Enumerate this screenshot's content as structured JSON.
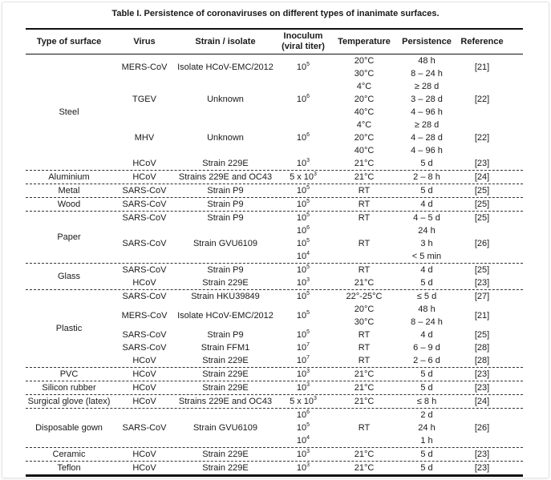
{
  "title": "Table I. Persistence of coronaviruses on different types of inanimate surfaces.",
  "headers": [
    "Type of surface",
    "Virus",
    "Strain / isolate",
    "Inoculum\n(viral titer)",
    "Temperature",
    "Persistence",
    "Reference"
  ],
  "surfaces": [
    {
      "name": "Steel",
      "entries": [
        {
          "virus": "MERS-CoV",
          "strain": "Isolate HCoV-EMC/2012",
          "inoculum": [
            {
              "base": "10",
              "exp": "5"
            }
          ],
          "temperature": [
            "20°C",
            "30°C"
          ],
          "persistence": [
            "48 h",
            "8 – 24 h"
          ],
          "reference": "[21]"
        },
        {
          "virus": "TGEV",
          "strain": "Unknown",
          "inoculum": [
            {
              "base": "10",
              "exp": "6"
            }
          ],
          "temperature": [
            "4°C",
            "20°C",
            "40°C"
          ],
          "persistence": [
            "≥ 28 d",
            "3 – 28 d",
            "4 – 96 h"
          ],
          "reference": "[22]"
        },
        {
          "virus": "MHV",
          "strain": "Unknown",
          "inoculum": [
            {
              "base": "10",
              "exp": "6"
            }
          ],
          "temperature": [
            "4°C",
            "20°C",
            "40°C"
          ],
          "persistence": [
            "≥ 28 d",
            "4 – 28 d",
            "4 – 96 h"
          ],
          "reference": "[22]"
        },
        {
          "virus": "HCoV",
          "strain": "Strain 229E",
          "inoculum": [
            {
              "base": "10",
              "exp": "3"
            }
          ],
          "temperature": [
            "21°C"
          ],
          "persistence": [
            "5 d"
          ],
          "reference": "[23]"
        }
      ]
    },
    {
      "name": "Aluminium",
      "entries": [
        {
          "virus": "HCoV",
          "strain": "Strains 229E and OC43",
          "inoculum": [
            {
              "base": "5 x 10",
              "exp": "3"
            }
          ],
          "temperature": [
            "21°C"
          ],
          "persistence": [
            "2 – 8 h"
          ],
          "reference": "[24]"
        }
      ]
    },
    {
      "name": "Metal",
      "entries": [
        {
          "virus": "SARS-CoV",
          "strain": "Strain P9",
          "inoculum": [
            {
              "base": "10",
              "exp": "5"
            }
          ],
          "temperature": [
            "RT"
          ],
          "persistence": [
            "5 d"
          ],
          "reference": "[25]"
        }
      ]
    },
    {
      "name": "Wood",
      "entries": [
        {
          "virus": "SARS-CoV",
          "strain": "Strain P9",
          "inoculum": [
            {
              "base": "10",
              "exp": "5"
            }
          ],
          "temperature": [
            "RT"
          ],
          "persistence": [
            "4 d"
          ],
          "reference": "[25]"
        }
      ]
    },
    {
      "name": "Paper",
      "entries": [
        {
          "virus": "SARS-CoV",
          "strain": "Strain P9",
          "inoculum": [
            {
              "base": "10",
              "exp": "5"
            }
          ],
          "temperature": [
            "RT"
          ],
          "persistence": [
            "4 – 5 d"
          ],
          "reference": "[25]"
        },
        {
          "virus": "SARS-CoV",
          "strain": "Strain GVU6109",
          "inoculum": [
            {
              "base": "10",
              "exp": "6"
            },
            {
              "base": "10",
              "exp": "5"
            },
            {
              "base": "10",
              "exp": "4"
            }
          ],
          "temperature": [
            "RT"
          ],
          "persistence": [
            "24 h",
            "3 h",
            "< 5 min"
          ],
          "reference": "[26]"
        }
      ]
    },
    {
      "name": "Glass",
      "entries": [
        {
          "virus": "SARS-CoV",
          "strain": "Strain P9",
          "inoculum": [
            {
              "base": "10",
              "exp": "5"
            }
          ],
          "temperature": [
            "RT"
          ],
          "persistence": [
            "4 d"
          ],
          "reference": "[25]"
        },
        {
          "virus": "HCoV",
          "strain": "Strain 229E",
          "inoculum": [
            {
              "base": "10",
              "exp": "3"
            }
          ],
          "temperature": [
            "21°C"
          ],
          "persistence": [
            "5 d"
          ],
          "reference": "[23]"
        }
      ]
    },
    {
      "name": "Plastic",
      "entries": [
        {
          "virus": "SARS-CoV",
          "strain": "Strain HKU39849",
          "inoculum": [
            {
              "base": "10",
              "exp": "5"
            }
          ],
          "temperature": [
            "22°-25°C"
          ],
          "persistence": [
            "≤ 5 d"
          ],
          "reference": "[27]"
        },
        {
          "virus": "MERS-CoV",
          "strain": "Isolate HCoV-EMC/2012",
          "inoculum": [
            {
              "base": "10",
              "exp": "5"
            }
          ],
          "temperature": [
            "20°C",
            "30°C"
          ],
          "persistence": [
            "48 h",
            "8 – 24 h"
          ],
          "reference": "[21]"
        },
        {
          "virus": "SARS-CoV",
          "strain": "Strain P9",
          "inoculum": [
            {
              "base": "10",
              "exp": "5"
            }
          ],
          "temperature": [
            "RT"
          ],
          "persistence": [
            "4 d"
          ],
          "reference": "[25]"
        },
        {
          "virus": "SARS-CoV",
          "strain": "Strain FFM1",
          "inoculum": [
            {
              "base": "10",
              "exp": "7"
            }
          ],
          "temperature": [
            "RT"
          ],
          "persistence": [
            "6 – 9 d"
          ],
          "reference": "[28]"
        },
        {
          "virus": "HCoV",
          "strain": "Strain 229E",
          "inoculum": [
            {
              "base": "10",
              "exp": "7"
            }
          ],
          "temperature": [
            "RT"
          ],
          "persistence": [
            "2 – 6 d"
          ],
          "reference": "[28]"
        }
      ]
    },
    {
      "name": "PVC",
      "entries": [
        {
          "virus": "HCoV",
          "strain": "Strain 229E",
          "inoculum": [
            {
              "base": "10",
              "exp": "3"
            }
          ],
          "temperature": [
            "21°C"
          ],
          "persistence": [
            "5 d"
          ],
          "reference": "[23]"
        }
      ]
    },
    {
      "name": "Silicon rubber",
      "entries": [
        {
          "virus": "HCoV",
          "strain": "Strain 229E",
          "inoculum": [
            {
              "base": "10",
              "exp": "3"
            }
          ],
          "temperature": [
            "21°C"
          ],
          "persistence": [
            "5 d"
          ],
          "reference": "[23]"
        }
      ]
    },
    {
      "name": "Surgical glove (latex)",
      "entries": [
        {
          "virus": "HCoV",
          "strain": "Strains 229E and OC43",
          "inoculum": [
            {
              "base": "5 x 10",
              "exp": "3"
            }
          ],
          "temperature": [
            "21°C"
          ],
          "persistence": [
            "≤ 8 h"
          ],
          "reference": "[24]"
        }
      ]
    },
    {
      "name": "Disposable gown",
      "entries": [
        {
          "virus": "SARS-CoV",
          "strain": "Strain GVU6109",
          "inoculum": [
            {
              "base": "10",
              "exp": "6"
            },
            {
              "base": "10",
              "exp": "5"
            },
            {
              "base": "10",
              "exp": "4"
            }
          ],
          "temperature": [
            "RT"
          ],
          "persistence": [
            "2 d",
            "24 h",
            "1 h"
          ],
          "reference": "[26]"
        }
      ]
    },
    {
      "name": "Ceramic",
      "entries": [
        {
          "virus": "HCoV",
          "strain": "Strain 229E",
          "inoculum": [
            {
              "base": "10",
              "exp": "3"
            }
          ],
          "temperature": [
            "21°C"
          ],
          "persistence": [
            "5 d"
          ],
          "reference": "[23]"
        }
      ]
    },
    {
      "name": "Teflon",
      "entries": [
        {
          "virus": "HCoV",
          "strain": "Strain 229E",
          "inoculum": [
            {
              "base": "10",
              "exp": "3"
            }
          ],
          "temperature": [
            "21°C"
          ],
          "persistence": [
            "5 d"
          ],
          "reference": "[23]"
        }
      ]
    }
  ]
}
